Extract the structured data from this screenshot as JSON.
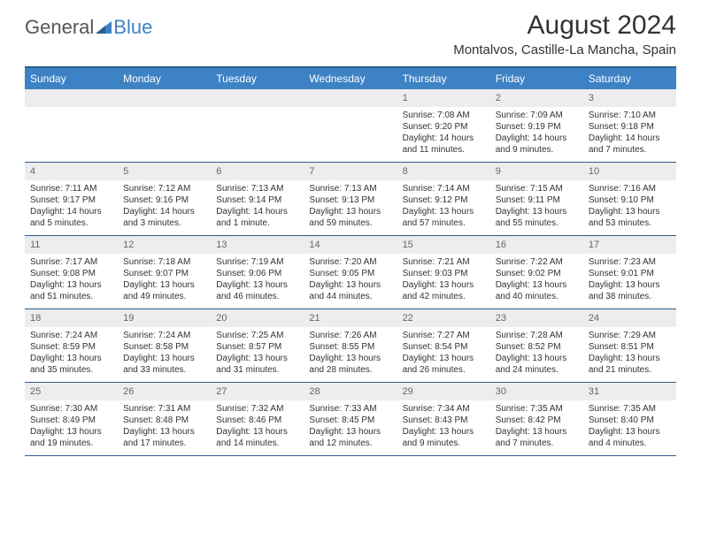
{
  "logo": {
    "general": "General",
    "blue": "Blue"
  },
  "title": "August 2024",
  "location": "Montalvos, Castille-La Mancha, Spain",
  "colors": {
    "header_bg": "#3d82c4",
    "border": "#2a5d8f",
    "daynum_bg": "#ededed",
    "text": "#333333"
  },
  "dow": [
    "Sunday",
    "Monday",
    "Tuesday",
    "Wednesday",
    "Thursday",
    "Friday",
    "Saturday"
  ],
  "weeks": [
    [
      {
        "n": "",
        "sr": "",
        "ss": "",
        "dl": ""
      },
      {
        "n": "",
        "sr": "",
        "ss": "",
        "dl": ""
      },
      {
        "n": "",
        "sr": "",
        "ss": "",
        "dl": ""
      },
      {
        "n": "",
        "sr": "",
        "ss": "",
        "dl": ""
      },
      {
        "n": "1",
        "sr": "Sunrise: 7:08 AM",
        "ss": "Sunset: 9:20 PM",
        "dl": "Daylight: 14 hours and 11 minutes."
      },
      {
        "n": "2",
        "sr": "Sunrise: 7:09 AM",
        "ss": "Sunset: 9:19 PM",
        "dl": "Daylight: 14 hours and 9 minutes."
      },
      {
        "n": "3",
        "sr": "Sunrise: 7:10 AM",
        "ss": "Sunset: 9:18 PM",
        "dl": "Daylight: 14 hours and 7 minutes."
      }
    ],
    [
      {
        "n": "4",
        "sr": "Sunrise: 7:11 AM",
        "ss": "Sunset: 9:17 PM",
        "dl": "Daylight: 14 hours and 5 minutes."
      },
      {
        "n": "5",
        "sr": "Sunrise: 7:12 AM",
        "ss": "Sunset: 9:16 PM",
        "dl": "Daylight: 14 hours and 3 minutes."
      },
      {
        "n": "6",
        "sr": "Sunrise: 7:13 AM",
        "ss": "Sunset: 9:14 PM",
        "dl": "Daylight: 14 hours and 1 minute."
      },
      {
        "n": "7",
        "sr": "Sunrise: 7:13 AM",
        "ss": "Sunset: 9:13 PM",
        "dl": "Daylight: 13 hours and 59 minutes."
      },
      {
        "n": "8",
        "sr": "Sunrise: 7:14 AM",
        "ss": "Sunset: 9:12 PM",
        "dl": "Daylight: 13 hours and 57 minutes."
      },
      {
        "n": "9",
        "sr": "Sunrise: 7:15 AM",
        "ss": "Sunset: 9:11 PM",
        "dl": "Daylight: 13 hours and 55 minutes."
      },
      {
        "n": "10",
        "sr": "Sunrise: 7:16 AM",
        "ss": "Sunset: 9:10 PM",
        "dl": "Daylight: 13 hours and 53 minutes."
      }
    ],
    [
      {
        "n": "11",
        "sr": "Sunrise: 7:17 AM",
        "ss": "Sunset: 9:08 PM",
        "dl": "Daylight: 13 hours and 51 minutes."
      },
      {
        "n": "12",
        "sr": "Sunrise: 7:18 AM",
        "ss": "Sunset: 9:07 PM",
        "dl": "Daylight: 13 hours and 49 minutes."
      },
      {
        "n": "13",
        "sr": "Sunrise: 7:19 AM",
        "ss": "Sunset: 9:06 PM",
        "dl": "Daylight: 13 hours and 46 minutes."
      },
      {
        "n": "14",
        "sr": "Sunrise: 7:20 AM",
        "ss": "Sunset: 9:05 PM",
        "dl": "Daylight: 13 hours and 44 minutes."
      },
      {
        "n": "15",
        "sr": "Sunrise: 7:21 AM",
        "ss": "Sunset: 9:03 PM",
        "dl": "Daylight: 13 hours and 42 minutes."
      },
      {
        "n": "16",
        "sr": "Sunrise: 7:22 AM",
        "ss": "Sunset: 9:02 PM",
        "dl": "Daylight: 13 hours and 40 minutes."
      },
      {
        "n": "17",
        "sr": "Sunrise: 7:23 AM",
        "ss": "Sunset: 9:01 PM",
        "dl": "Daylight: 13 hours and 38 minutes."
      }
    ],
    [
      {
        "n": "18",
        "sr": "Sunrise: 7:24 AM",
        "ss": "Sunset: 8:59 PM",
        "dl": "Daylight: 13 hours and 35 minutes."
      },
      {
        "n": "19",
        "sr": "Sunrise: 7:24 AM",
        "ss": "Sunset: 8:58 PM",
        "dl": "Daylight: 13 hours and 33 minutes."
      },
      {
        "n": "20",
        "sr": "Sunrise: 7:25 AM",
        "ss": "Sunset: 8:57 PM",
        "dl": "Daylight: 13 hours and 31 minutes."
      },
      {
        "n": "21",
        "sr": "Sunrise: 7:26 AM",
        "ss": "Sunset: 8:55 PM",
        "dl": "Daylight: 13 hours and 28 minutes."
      },
      {
        "n": "22",
        "sr": "Sunrise: 7:27 AM",
        "ss": "Sunset: 8:54 PM",
        "dl": "Daylight: 13 hours and 26 minutes."
      },
      {
        "n": "23",
        "sr": "Sunrise: 7:28 AM",
        "ss": "Sunset: 8:52 PM",
        "dl": "Daylight: 13 hours and 24 minutes."
      },
      {
        "n": "24",
        "sr": "Sunrise: 7:29 AM",
        "ss": "Sunset: 8:51 PM",
        "dl": "Daylight: 13 hours and 21 minutes."
      }
    ],
    [
      {
        "n": "25",
        "sr": "Sunrise: 7:30 AM",
        "ss": "Sunset: 8:49 PM",
        "dl": "Daylight: 13 hours and 19 minutes."
      },
      {
        "n": "26",
        "sr": "Sunrise: 7:31 AM",
        "ss": "Sunset: 8:48 PM",
        "dl": "Daylight: 13 hours and 17 minutes."
      },
      {
        "n": "27",
        "sr": "Sunrise: 7:32 AM",
        "ss": "Sunset: 8:46 PM",
        "dl": "Daylight: 13 hours and 14 minutes."
      },
      {
        "n": "28",
        "sr": "Sunrise: 7:33 AM",
        "ss": "Sunset: 8:45 PM",
        "dl": "Daylight: 13 hours and 12 minutes."
      },
      {
        "n": "29",
        "sr": "Sunrise: 7:34 AM",
        "ss": "Sunset: 8:43 PM",
        "dl": "Daylight: 13 hours and 9 minutes."
      },
      {
        "n": "30",
        "sr": "Sunrise: 7:35 AM",
        "ss": "Sunset: 8:42 PM",
        "dl": "Daylight: 13 hours and 7 minutes."
      },
      {
        "n": "31",
        "sr": "Sunrise: 7:35 AM",
        "ss": "Sunset: 8:40 PM",
        "dl": "Daylight: 13 hours and 4 minutes."
      }
    ]
  ]
}
